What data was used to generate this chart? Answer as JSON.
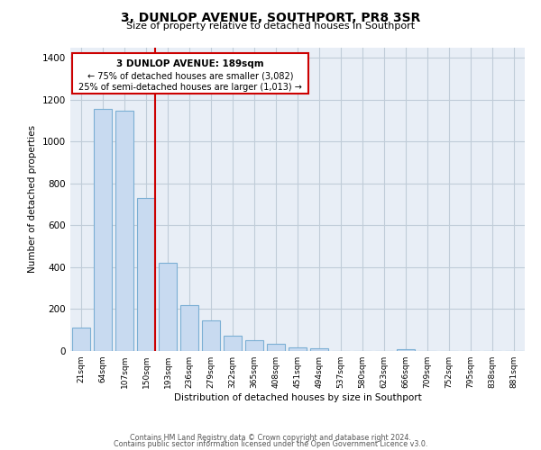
{
  "title": "3, DUNLOP AVENUE, SOUTHPORT, PR8 3SR",
  "subtitle": "Size of property relative to detached houses in Southport",
  "xlabel": "Distribution of detached houses by size in Southport",
  "ylabel": "Number of detached properties",
  "bar_labels": [
    "21sqm",
    "64sqm",
    "107sqm",
    "150sqm",
    "193sqm",
    "236sqm",
    "279sqm",
    "322sqm",
    "365sqm",
    "408sqm",
    "451sqm",
    "494sqm",
    "537sqm",
    "580sqm",
    "623sqm",
    "666sqm",
    "709sqm",
    "752sqm",
    "795sqm",
    "838sqm",
    "881sqm"
  ],
  "bar_values": [
    110,
    1155,
    1148,
    730,
    420,
    220,
    148,
    75,
    50,
    33,
    18,
    15,
    0,
    0,
    0,
    10,
    0,
    0,
    0,
    0,
    0
  ],
  "bar_color": "#c8daf0",
  "bar_edge_color": "#7bafd4",
  "vline_color": "#cc0000",
  "annotation_title": "3 DUNLOP AVENUE: 189sqm",
  "annotation_line1": "← 75% of detached houses are smaller (3,082)",
  "annotation_line2": "25% of semi-detached houses are larger (1,013) →",
  "annotation_box_color": "#ffffff",
  "annotation_box_edge": "#cc0000",
  "ylim": [
    0,
    1450
  ],
  "yticks": [
    0,
    200,
    400,
    600,
    800,
    1000,
    1200,
    1400
  ],
  "footer1": "Contains HM Land Registry data © Crown copyright and database right 2024.",
  "footer2": "Contains public sector information licensed under the Open Government Licence v3.0.",
  "bg_color": "#ffffff",
  "plot_bg_color": "#e8eef6",
  "grid_color": "#c0ccd8"
}
